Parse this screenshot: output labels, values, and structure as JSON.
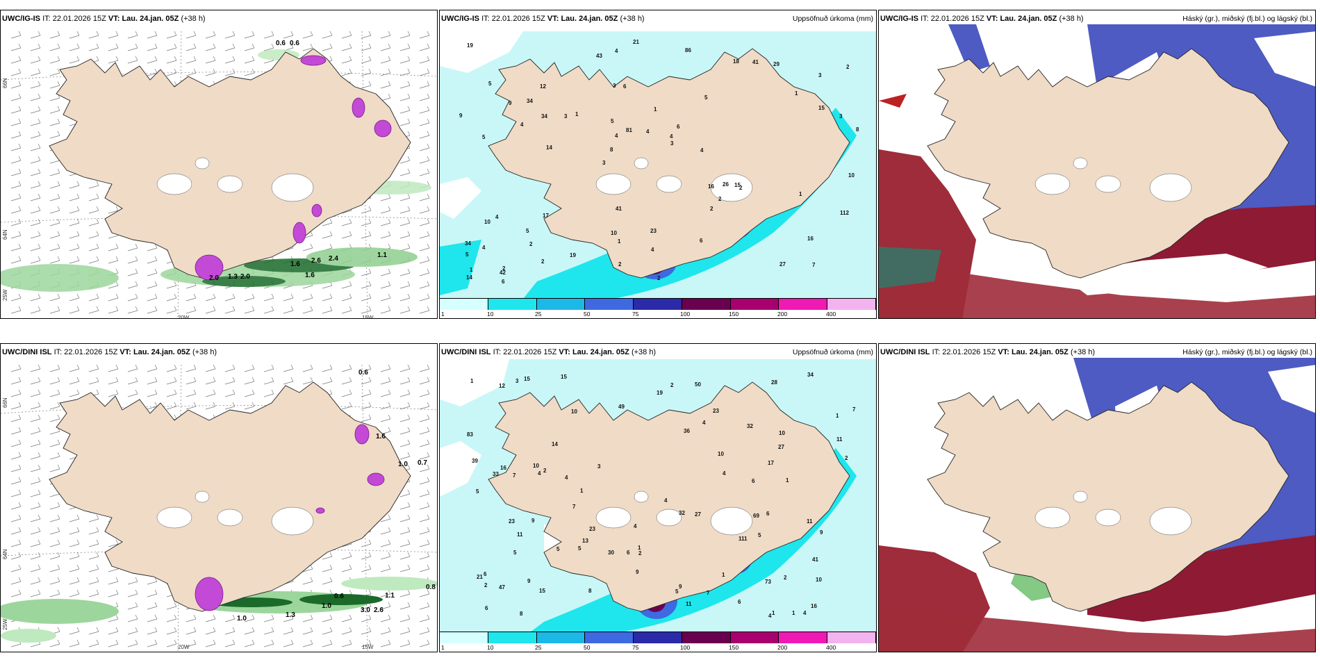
{
  "panels": {
    "top_left": {
      "model": "UWC/IG-IS",
      "it_label": "IT:",
      "it_value": "22.01.2026 15Z",
      "vt_label": "VT:",
      "vt_value": "Lau. 24.jan. 05Z",
      "lead": "(+38 h)"
    },
    "top_mid": {
      "model": "UWC/IG-IS",
      "it_label": "IT:",
      "it_value": "22.01.2026 15Z",
      "vt_label": "VT:",
      "vt_value": "Lau. 24.jan. 05Z",
      "lead": "(+38 h)",
      "right_title": "Uppsöfnuð úrkoma (mm)"
    },
    "top_right": {
      "model": "UWC/IG-IS",
      "it_label": "IT:",
      "it_value": "22.01.2026 15Z",
      "vt_label": "VT:",
      "vt_value": "Lau. 24.jan. 05Z",
      "lead": "(+38 h)",
      "right_title": "Háský (gr.), miðský (fj.bl.) og lágský (bl.)"
    },
    "bottom_left": {
      "model": "UWC/DINI ISL",
      "it_label": "IT:",
      "it_value": "22.01.2026 15Z",
      "vt_label": "VT:",
      "vt_value": "Lau. 24.jan. 05Z",
      "lead": "(+38 h)"
    },
    "bottom_mid": {
      "model": "UWC/DINI ISL",
      "it_label": "IT:",
      "it_value": "22.01.2026 15Z",
      "vt_label": "VT:",
      "vt_value": "Lau. 24.jan. 05Z",
      "lead": "(+38 h)",
      "right_title": "Uppsöfnuð úrkoma (mm)"
    },
    "bottom_right": {
      "model": "UWC/DINI ISL",
      "it_label": "IT:",
      "it_value": "22.01.2026 15Z",
      "vt_label": "VT:",
      "vt_value": "Lau. 24.jan. 05Z",
      "lead": "(+38 h)",
      "right_title": "Háský (gr.), miðský (fj.bl.) og lágský (bl.)"
    }
  },
  "axis_labels": {
    "lon_20w": "20W",
    "lon_15w": "15W",
    "lat_66n": "66N",
    "lat_64n": "64N",
    "lon_25w": "25W"
  },
  "precip_legend": {
    "ticks": [
      "1",
      "10",
      "25",
      "50",
      "75",
      "100",
      "150",
      "200",
      "400"
    ],
    "colors": [
      "#d6ffff",
      "#1ee6ec",
      "#1cb8e8",
      "#3e69e0",
      "#2b2aa8",
      "#6a0050",
      "#a8006e",
      "#ef19b4",
      "#f2b3ef"
    ]
  },
  "land_color": "#efdbc6",
  "precip_top_values": [
    "7",
    "5",
    "3",
    "3",
    "5",
    "2",
    "3",
    "1",
    "4",
    "1",
    "5",
    "2",
    "6",
    "6",
    "2",
    "5",
    "4",
    "8",
    "16",
    "15",
    "8",
    "10",
    "4",
    "12",
    "18",
    "17",
    "27",
    "16",
    "15",
    "2",
    "3",
    "4",
    "2",
    "2",
    "3",
    "4",
    "1",
    "1",
    "3",
    "10",
    "1",
    "2",
    "2",
    "6",
    "5",
    "6",
    "14",
    "23",
    "29",
    "21",
    "14",
    "9",
    "34",
    "41",
    "42",
    "86",
    "43",
    "81",
    "112",
    "41",
    "19",
    "26",
    "34",
    "34",
    "19",
    "9",
    "10",
    "5",
    "4",
    "4",
    "4",
    "4",
    "1",
    "2"
  ],
  "precip_bottom_values": [
    "4",
    "4",
    "3",
    "6",
    "4",
    "10",
    "6",
    "7",
    "5",
    "6",
    "1",
    "2",
    "1",
    "1",
    "1",
    "1",
    "4",
    "2",
    "1",
    "3",
    "1",
    "2",
    "7",
    "5",
    "2",
    "4",
    "5",
    "6",
    "10",
    "21",
    "13",
    "30",
    "47",
    "41",
    "32",
    "39",
    "16",
    "15",
    "9",
    "8",
    "5",
    "16",
    "11",
    "6",
    "2",
    "2",
    "1",
    "14",
    "15",
    "23",
    "11",
    "17",
    "27",
    "28",
    "11",
    "10",
    "15",
    "12",
    "5",
    "9",
    "50",
    "49",
    "83",
    "69",
    "73",
    "33",
    "34",
    "36",
    "111",
    "23",
    "23",
    "10",
    "9",
    "27",
    "10",
    "9",
    "9",
    "7",
    "7",
    "4",
    "4",
    "6",
    "5",
    "4",
    "11",
    "8",
    "19",
    "32"
  ],
  "wind_top_labels": [
    "0.6",
    "0.6",
    "1.6",
    "2.6",
    "2.4",
    "1.1",
    "1.3",
    "2.0",
    "1.6",
    "2.0"
  ],
  "wind_bottom_labels": [
    "0.6",
    "1.6",
    "1.0",
    "0.7",
    "0.6",
    "0.8",
    "1.1",
    "1.3",
    "3.0",
    "2.6",
    "1.0",
    "1.0"
  ]
}
